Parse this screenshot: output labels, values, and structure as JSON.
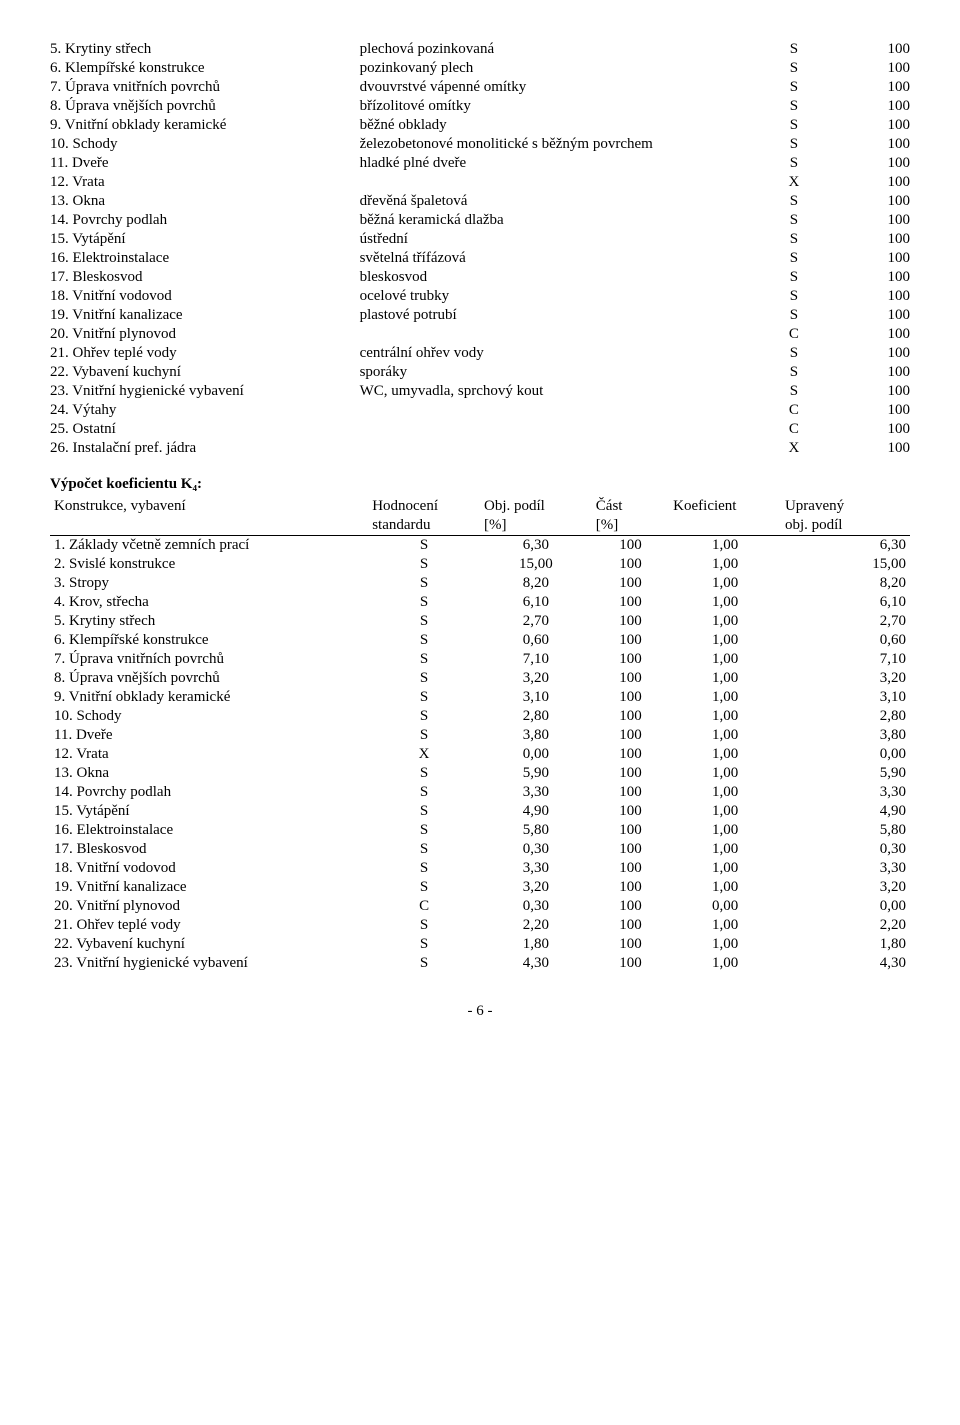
{
  "table1": {
    "rows": [
      {
        "n": "5. Krytiny střech",
        "d": "plechová pozinkovaná",
        "s": "S",
        "v": "100"
      },
      {
        "n": "6. Klempířské konstrukce",
        "d": "pozinkovaný plech",
        "s": "S",
        "v": "100"
      },
      {
        "n": "7. Úprava vnitřních povrchů",
        "d": "dvouvrstvé vápenné omítky",
        "s": "S",
        "v": "100"
      },
      {
        "n": "8. Úprava vnějších povrchů",
        "d": "břízolitové omítky",
        "s": "S",
        "v": "100"
      },
      {
        "n": "9. Vnitřní obklady keramické",
        "d": "běžné obklady",
        "s": "S",
        "v": "100"
      },
      {
        "n": "10. Schody",
        "d": "železobetonové monolitické s běžným povrchem",
        "s": "S",
        "v": "100"
      },
      {
        "n": "11. Dveře",
        "d": "hladké plné dveře",
        "s": "S",
        "v": "100"
      },
      {
        "n": "12. Vrata",
        "d": "",
        "s": "X",
        "v": "100"
      },
      {
        "n": "13. Okna",
        "d": "dřevěná špaletová",
        "s": "S",
        "v": "100"
      },
      {
        "n": "14. Povrchy podlah",
        "d": "běžná keramická dlažba",
        "s": "S",
        "v": "100"
      },
      {
        "n": "15. Vytápění",
        "d": "ústřední",
        "s": "S",
        "v": "100"
      },
      {
        "n": "16. Elektroinstalace",
        "d": "světelná třífázová",
        "s": "S",
        "v": "100"
      },
      {
        "n": "17. Bleskosvod",
        "d": "bleskosvod",
        "s": "S",
        "v": "100"
      },
      {
        "n": "18. Vnitřní vodovod",
        "d": "ocelové trubky",
        "s": "S",
        "v": "100"
      },
      {
        "n": "19. Vnitřní kanalizace",
        "d": "plastové potrubí",
        "s": "S",
        "v": "100"
      },
      {
        "n": "20. Vnitřní plynovod",
        "d": "",
        "s": "C",
        "v": "100"
      },
      {
        "n": "21. Ohřev teplé vody",
        "d": "centrální ohřev vody",
        "s": "S",
        "v": "100"
      },
      {
        "n": "22. Vybavení kuchyní",
        "d": "sporáky",
        "s": "S",
        "v": "100"
      },
      {
        "n": "23. Vnitřní hygienické vybavení",
        "d": "WC, umyvadla, sprchový kout",
        "s": "S",
        "v": "100"
      },
      {
        "n": "24. Výtahy",
        "d": "",
        "s": "C",
        "v": "100"
      },
      {
        "n": "25. Ostatní",
        "d": "",
        "s": "C",
        "v": "100"
      },
      {
        "n": "26. Instalační pref. jádra",
        "d": "",
        "s": "X",
        "v": "100"
      }
    ]
  },
  "section_title": "Výpočet koeficientu K₄:",
  "table2": {
    "header1": {
      "c1": "Konstrukce, vybavení",
      "c2": "Hodnocení",
      "c3": "Obj. podíl",
      "c4": "Část",
      "c5": "Koeficient",
      "c6": "Upravený"
    },
    "header2": {
      "c1": "",
      "c2": "standardu",
      "c3": "[%]",
      "c4": "[%]",
      "c5": "",
      "c6": "obj. podíl"
    },
    "rows": [
      {
        "n": "1. Základy včetně zemních prací",
        "s": "S",
        "o": "6,30",
        "c": "100",
        "k": "1,00",
        "u": "6,30"
      },
      {
        "n": "2. Svislé konstrukce",
        "s": "S",
        "o": "15,00",
        "c": "100",
        "k": "1,00",
        "u": "15,00"
      },
      {
        "n": "3. Stropy",
        "s": "S",
        "o": "8,20",
        "c": "100",
        "k": "1,00",
        "u": "8,20"
      },
      {
        "n": "4. Krov, střecha",
        "s": "S",
        "o": "6,10",
        "c": "100",
        "k": "1,00",
        "u": "6,10"
      },
      {
        "n": "5. Krytiny střech",
        "s": "S",
        "o": "2,70",
        "c": "100",
        "k": "1,00",
        "u": "2,70"
      },
      {
        "n": "6. Klempířské konstrukce",
        "s": "S",
        "o": "0,60",
        "c": "100",
        "k": "1,00",
        "u": "0,60"
      },
      {
        "n": "7. Úprava vnitřních povrchů",
        "s": "S",
        "o": "7,10",
        "c": "100",
        "k": "1,00",
        "u": "7,10"
      },
      {
        "n": "8. Úprava vnějších povrchů",
        "s": "S",
        "o": "3,20",
        "c": "100",
        "k": "1,00",
        "u": "3,20"
      },
      {
        "n": "9. Vnitřní obklady keramické",
        "s": "S",
        "o": "3,10",
        "c": "100",
        "k": "1,00",
        "u": "3,10"
      },
      {
        "n": "10. Schody",
        "s": "S",
        "o": "2,80",
        "c": "100",
        "k": "1,00",
        "u": "2,80"
      },
      {
        "n": "11. Dveře",
        "s": "S",
        "o": "3,80",
        "c": "100",
        "k": "1,00",
        "u": "3,80"
      },
      {
        "n": "12. Vrata",
        "s": "X",
        "o": "0,00",
        "c": "100",
        "k": "1,00",
        "u": "0,00"
      },
      {
        "n": "13. Okna",
        "s": "S",
        "o": "5,90",
        "c": "100",
        "k": "1,00",
        "u": "5,90"
      },
      {
        "n": "14. Povrchy podlah",
        "s": "S",
        "o": "3,30",
        "c": "100",
        "k": "1,00",
        "u": "3,30"
      },
      {
        "n": "15. Vytápění",
        "s": "S",
        "o": "4,90",
        "c": "100",
        "k": "1,00",
        "u": "4,90"
      },
      {
        "n": "16. Elektroinstalace",
        "s": "S",
        "o": "5,80",
        "c": "100",
        "k": "1,00",
        "u": "5,80"
      },
      {
        "n": "17. Bleskosvod",
        "s": "S",
        "o": "0,30",
        "c": "100",
        "k": "1,00",
        "u": "0,30"
      },
      {
        "n": "18. Vnitřní vodovod",
        "s": "S",
        "o": "3,30",
        "c": "100",
        "k": "1,00",
        "u": "3,30"
      },
      {
        "n": "19. Vnitřní kanalizace",
        "s": "S",
        "o": "3,20",
        "c": "100",
        "k": "1,00",
        "u": "3,20"
      },
      {
        "n": "20. Vnitřní plynovod",
        "s": "C",
        "o": "0,30",
        "c": "100",
        "k": "0,00",
        "u": "0,00"
      },
      {
        "n": "21. Ohřev teplé vody",
        "s": "S",
        "o": "2,20",
        "c": "100",
        "k": "1,00",
        "u": "2,20"
      },
      {
        "n": "22. Vybavení kuchyní",
        "s": "S",
        "o": "1,80",
        "c": "100",
        "k": "1,00",
        "u": "1,80"
      },
      {
        "n": "23. Vnitřní hygienické vybavení",
        "s": "S",
        "o": "4,30",
        "c": "100",
        "k": "1,00",
        "u": "4,30"
      }
    ]
  },
  "page_num": "- 6 -"
}
